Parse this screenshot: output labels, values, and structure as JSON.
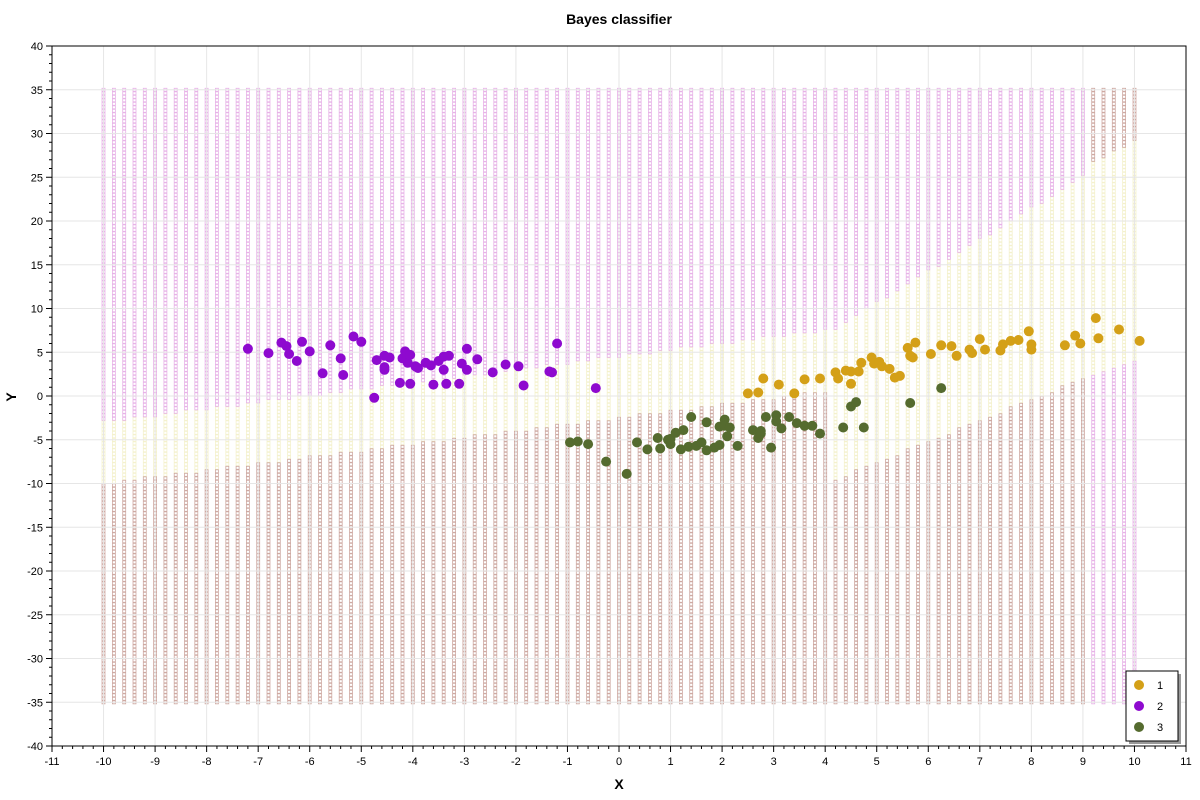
{
  "chart_data": {
    "type": "scatter",
    "title": "Bayes classifier",
    "xlabel": "X",
    "ylabel": "Y",
    "xlim": [
      -11,
      11
    ],
    "ylim": [
      -40,
      40
    ],
    "x_ticks": [
      "-11",
      "-10",
      "-9",
      "-8",
      "-7",
      "-6",
      "-5",
      "-4",
      "-3",
      "-2",
      "-1",
      "0",
      "1",
      "2",
      "3",
      "4",
      "5",
      "6",
      "7",
      "8",
      "9",
      "10",
      "11"
    ],
    "y_ticks": [
      "40",
      "35",
      "30",
      "25",
      "20",
      "15",
      "10",
      "5",
      "0",
      "-5",
      "-10",
      "-15",
      "-20",
      "-25",
      "-30",
      "-35",
      "-40"
    ],
    "grid": true,
    "legend_position": "bottom-right",
    "background_grid": {
      "x_range": [
        -10,
        10
      ],
      "y_range": [
        -35,
        35
      ],
      "step": 0.2,
      "description_colors": {
        "region_1": "#f2efc4",
        "region_2": "#e3a6e3",
        "region_3": "#c59a92"
      }
    },
    "series": [
      {
        "name": "1",
        "color": "#d4a017",
        "points": [
          [
            2.5,
            0.3
          ],
          [
            2.7,
            0.4
          ],
          [
            2.8,
            2.0
          ],
          [
            3.1,
            1.3
          ],
          [
            3.4,
            0.3
          ],
          [
            3.6,
            1.9
          ],
          [
            3.9,
            2.0
          ],
          [
            4.2,
            2.7
          ],
          [
            4.25,
            2.0
          ],
          [
            4.4,
            2.9
          ],
          [
            4.5,
            1.4
          ],
          [
            4.5,
            2.8
          ],
          [
            4.65,
            2.8
          ],
          [
            4.7,
            3.8
          ],
          [
            4.9,
            4.4
          ],
          [
            4.95,
            3.7
          ],
          [
            5.05,
            3.9
          ],
          [
            5.1,
            3.4
          ],
          [
            5.25,
            3.1
          ],
          [
            5.35,
            2.1
          ],
          [
            5.45,
            2.3
          ],
          [
            5.6,
            5.5
          ],
          [
            5.65,
            4.6
          ],
          [
            5.7,
            4.4
          ],
          [
            5.75,
            6.1
          ],
          [
            6.05,
            4.8
          ],
          [
            6.25,
            5.8
          ],
          [
            6.45,
            5.7
          ],
          [
            6.55,
            4.6
          ],
          [
            6.8,
            5.3
          ],
          [
            6.85,
            4.9
          ],
          [
            7.0,
            6.5
          ],
          [
            7.1,
            5.3
          ],
          [
            7.4,
            5.2
          ],
          [
            7.45,
            5.9
          ],
          [
            7.6,
            6.3
          ],
          [
            7.75,
            6.4
          ],
          [
            7.95,
            7.4
          ],
          [
            8.0,
            5.3
          ],
          [
            8.0,
            5.9
          ],
          [
            8.65,
            5.8
          ],
          [
            8.85,
            6.9
          ],
          [
            8.95,
            6.0
          ],
          [
            9.25,
            8.9
          ],
          [
            9.3,
            6.6
          ],
          [
            9.7,
            7.6
          ],
          [
            10.1,
            6.3
          ]
        ]
      },
      {
        "name": "2",
        "color": "#8e0acf",
        "points": [
          [
            -7.2,
            5.4
          ],
          [
            -6.8,
            4.9
          ],
          [
            -6.55,
            6.1
          ],
          [
            -6.45,
            5.7
          ],
          [
            -6.4,
            4.8
          ],
          [
            -6.25,
            4.0
          ],
          [
            -6.15,
            6.2
          ],
          [
            -6.0,
            5.1
          ],
          [
            -5.75,
            2.6
          ],
          [
            -5.6,
            5.8
          ],
          [
            -5.4,
            4.3
          ],
          [
            -5.35,
            2.4
          ],
          [
            -5.15,
            6.8
          ],
          [
            -5.0,
            6.2
          ],
          [
            -4.75,
            -0.2
          ],
          [
            -4.7,
            4.1
          ],
          [
            -4.55,
            3.3
          ],
          [
            -4.55,
            4.6
          ],
          [
            -4.55,
            3.0
          ],
          [
            -4.45,
            4.4
          ],
          [
            -4.25,
            1.5
          ],
          [
            -4.2,
            4.3
          ],
          [
            -4.15,
            5.1
          ],
          [
            -4.1,
            3.8
          ],
          [
            -4.05,
            4.7
          ],
          [
            -4.05,
            1.4
          ],
          [
            -3.95,
            3.4
          ],
          [
            -3.9,
            3.2
          ],
          [
            -3.75,
            3.8
          ],
          [
            -3.65,
            3.5
          ],
          [
            -3.6,
            1.3
          ],
          [
            -3.5,
            4.0
          ],
          [
            -3.4,
            3.0
          ],
          [
            -3.4,
            4.5
          ],
          [
            -3.35,
            1.4
          ],
          [
            -3.3,
            4.6
          ],
          [
            -3.1,
            1.4
          ],
          [
            -3.05,
            3.7
          ],
          [
            -2.95,
            5.4
          ],
          [
            -2.95,
            3.0
          ],
          [
            -2.75,
            4.2
          ],
          [
            -2.45,
            2.7
          ],
          [
            -2.2,
            3.6
          ],
          [
            -1.95,
            3.4
          ],
          [
            -1.85,
            1.2
          ],
          [
            -1.35,
            2.8
          ],
          [
            -1.3,
            2.7
          ],
          [
            -1.2,
            6.0
          ],
          [
            -0.45,
            0.9
          ]
        ]
      },
      {
        "name": "3",
        "color": "#556b2f",
        "points": [
          [
            -0.95,
            -5.3
          ],
          [
            -0.8,
            -5.2
          ],
          [
            -0.6,
            -5.5
          ],
          [
            -0.25,
            -7.5
          ],
          [
            0.15,
            -8.9
          ],
          [
            0.35,
            -5.3
          ],
          [
            0.55,
            -6.1
          ],
          [
            0.75,
            -4.8
          ],
          [
            0.8,
            -6.0
          ],
          [
            0.95,
            -5.0
          ],
          [
            1.0,
            -5.5
          ],
          [
            1.0,
            -4.9
          ],
          [
            1.1,
            -4.2
          ],
          [
            1.2,
            -6.1
          ],
          [
            1.25,
            -3.9
          ],
          [
            1.35,
            -5.8
          ],
          [
            1.4,
            -2.4
          ],
          [
            1.5,
            -5.7
          ],
          [
            1.6,
            -5.3
          ],
          [
            1.7,
            -6.2
          ],
          [
            1.7,
            -3.0
          ],
          [
            1.85,
            -5.9
          ],
          [
            1.95,
            -5.6
          ],
          [
            1.95,
            -3.5
          ],
          [
            2.05,
            -2.7
          ],
          [
            2.05,
            -3.4
          ],
          [
            2.1,
            -4.6
          ],
          [
            2.15,
            -3.6
          ],
          [
            2.3,
            -5.7
          ],
          [
            2.6,
            -3.9
          ],
          [
            2.7,
            -4.8
          ],
          [
            2.75,
            -4.3
          ],
          [
            2.75,
            -4.0
          ],
          [
            2.85,
            -2.4
          ],
          [
            2.95,
            -5.9
          ],
          [
            3.05,
            -2.2
          ],
          [
            3.05,
            -2.9
          ],
          [
            3.15,
            -3.7
          ],
          [
            3.3,
            -2.4
          ],
          [
            3.45,
            -3.1
          ],
          [
            3.6,
            -3.4
          ],
          [
            3.75,
            -3.4
          ],
          [
            3.9,
            -4.3
          ],
          [
            4.35,
            -3.6
          ],
          [
            4.5,
            -1.2
          ],
          [
            4.6,
            -0.7
          ],
          [
            4.75,
            -3.6
          ],
          [
            5.65,
            -0.8
          ],
          [
            6.25,
            0.9
          ]
        ]
      }
    ]
  }
}
